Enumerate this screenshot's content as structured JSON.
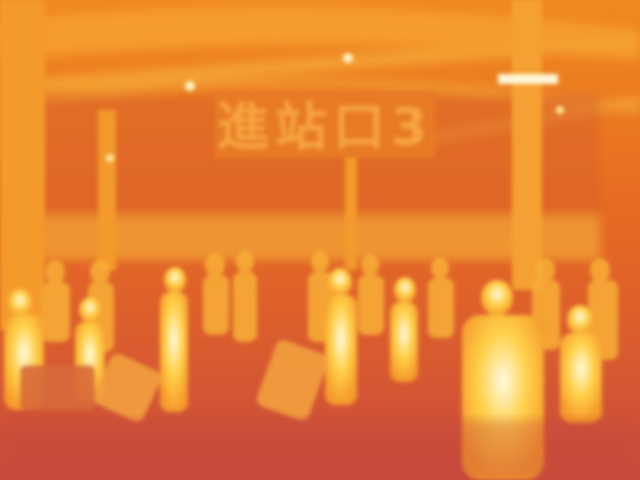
{
  "sign": {
    "text": "進站口3"
  }
}
